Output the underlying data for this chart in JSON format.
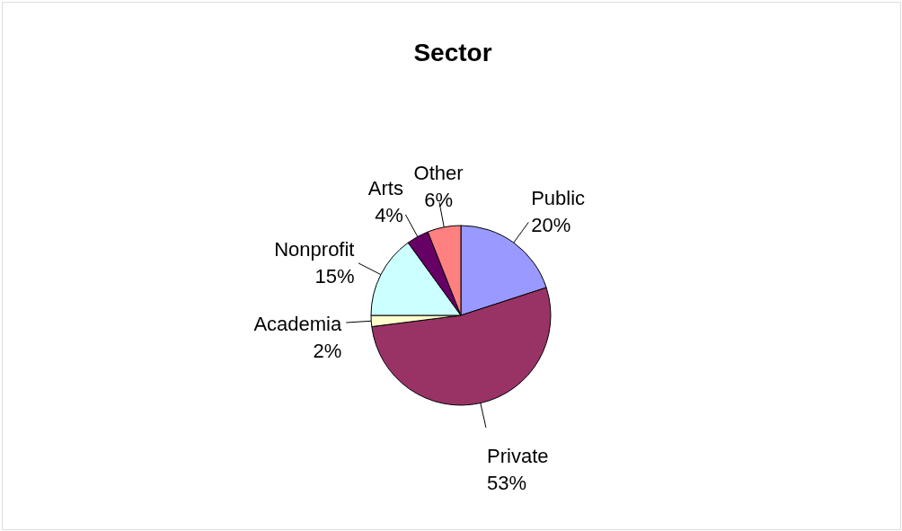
{
  "chart_data": {
    "type": "pie",
    "title": "Sector",
    "categories": [
      "Public",
      "Private",
      "Academia",
      "Nonprofit",
      "Arts",
      "Other"
    ],
    "values": [
      20,
      53,
      2,
      15,
      4,
      6
    ],
    "value_labels": [
      "20%",
      "53%",
      "2%",
      "15%",
      "4%",
      "6%"
    ],
    "colors": [
      "#9999ff",
      "#993366",
      "#ffffcc",
      "#ccffff",
      "#660066",
      "#ff8080"
    ]
  }
}
